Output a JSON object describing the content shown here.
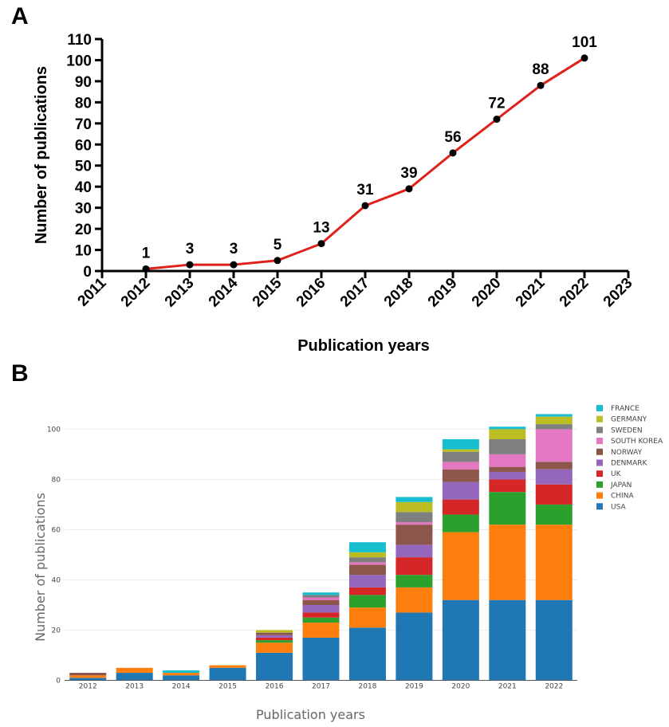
{
  "panels": {
    "a_label": "A",
    "b_label": "B"
  },
  "chart_data": [
    {
      "type": "line",
      "panel": "A",
      "x": [
        2012,
        2013,
        2014,
        2015,
        2016,
        2017,
        2018,
        2019,
        2020,
        2021,
        2022
      ],
      "values": [
        1,
        3,
        3,
        5,
        13,
        31,
        39,
        56,
        72,
        88,
        101
      ],
      "data_labels": [
        "1",
        "3",
        "3",
        "5",
        "13",
        "31",
        "39",
        "56",
        "72",
        "88",
        "101"
      ],
      "xlabel": "Publication years",
      "ylabel": "Number of publications",
      "xlim": [
        2011,
        2023
      ],
      "ylim": [
        0,
        110
      ],
      "x_ticks": [
        "2011",
        "2012",
        "2013",
        "2014",
        "2015",
        "2016",
        "2017",
        "2018",
        "2019",
        "2020",
        "2021",
        "2022",
        "2023"
      ],
      "y_ticks": [
        "0",
        "10",
        "20",
        "30",
        "40",
        "50",
        "60",
        "70",
        "80",
        "90",
        "100",
        "110"
      ],
      "line_color": "#e0201b",
      "marker_color": "#000000",
      "grid": false
    },
    {
      "type": "bar",
      "stacked": true,
      "panel": "B",
      "categories": [
        "2012",
        "2013",
        "2014",
        "2015",
        "2016",
        "2017",
        "2018",
        "2019",
        "2020",
        "2021",
        "2022"
      ],
      "series": [
        {
          "name": "USA",
          "color": "#1f77b4",
          "values": [
            1,
            3,
            2,
            5,
            11,
            17,
            21,
            27,
            32,
            32,
            32
          ]
        },
        {
          "name": "CHINA",
          "color": "#ff7f0e",
          "values": [
            1,
            2,
            1,
            1,
            4,
            6,
            8,
            10,
            27,
            30,
            30
          ]
        },
        {
          "name": "JAPAN",
          "color": "#2ca02c",
          "values": [
            0,
            0,
            0,
            0,
            1,
            2,
            5,
            5,
            7,
            13,
            8
          ]
        },
        {
          "name": "UK",
          "color": "#d62728",
          "values": [
            0,
            0,
            0,
            0,
            1,
            2,
            3,
            7,
            6,
            5,
            8
          ]
        },
        {
          "name": "DENMARK",
          "color": "#9467bd",
          "values": [
            0,
            0,
            0,
            0,
            1,
            3,
            5,
            5,
            7,
            3,
            6
          ]
        },
        {
          "name": "NORWAY",
          "color": "#8c564b",
          "values": [
            1,
            0,
            0,
            0,
            1,
            2,
            4,
            8,
            5,
            2,
            3
          ]
        },
        {
          "name": "SOUTH KOREA",
          "color": "#e377c2",
          "values": [
            0,
            0,
            0,
            0,
            0,
            1,
            1,
            1,
            3,
            5,
            13
          ]
        },
        {
          "name": "SWEDEN",
          "color": "#7f7f7f",
          "values": [
            0,
            0,
            0,
            0,
            0,
            1,
            2,
            4,
            4,
            6,
            2
          ]
        },
        {
          "name": "GERMANY",
          "color": "#bcbd22",
          "values": [
            0,
            0,
            0,
            0,
            1,
            0,
            2,
            4,
            1,
            4,
            3
          ]
        },
        {
          "name": "FRANCE",
          "color": "#17becf",
          "values": [
            0,
            0,
            1,
            0,
            0,
            1,
            4,
            2,
            4,
            1,
            1
          ]
        }
      ],
      "legend_order": [
        "FRANCE",
        "GERMANY",
        "SWEDEN",
        "SOUTH KOREA",
        "NORWAY",
        "DENMARK",
        "UK",
        "JAPAN",
        "CHINA",
        "USA"
      ],
      "legend_position": "top-right",
      "xlabel": "Publication years",
      "ylabel": "Number of publications",
      "ylim": [
        0,
        106
      ],
      "y_ticks": [
        "0",
        "20",
        "40",
        "60",
        "80",
        "100"
      ],
      "grid": true
    }
  ]
}
